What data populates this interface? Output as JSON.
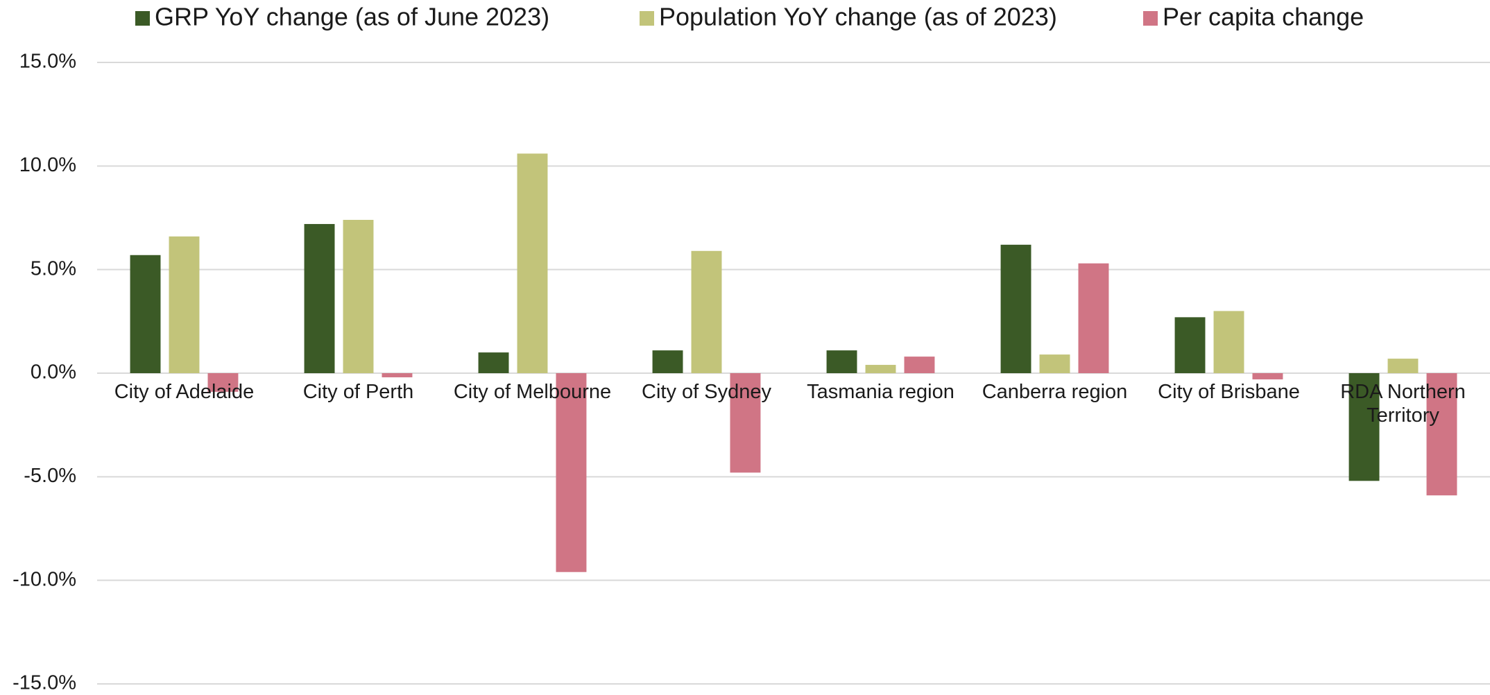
{
  "chart_data": {
    "type": "bar",
    "categories": [
      "City of Adelaide",
      "City of Perth",
      "City of Melbourne",
      "City of Sydney",
      "Tasmania region",
      "Canberra region",
      "City of Brisbane",
      "RDA Northern Territory"
    ],
    "series": [
      {
        "name": "GRP YoY change (as of June 2023)",
        "color": "#3b5a26",
        "values": [
          5.7,
          7.2,
          1.0,
          1.1,
          1.1,
          6.2,
          2.7,
          -5.2
        ]
      },
      {
        "name": "Population YoY change (as of 2023)",
        "color": "#c2c47a",
        "values": [
          6.6,
          7.4,
          10.6,
          5.9,
          0.4,
          0.9,
          3.0,
          0.7
        ]
      },
      {
        "name": "Per capita change",
        "color": "#d07585",
        "values": [
          -0.9,
          -0.2,
          -9.6,
          -4.8,
          0.8,
          5.3,
          -0.3,
          -5.9
        ]
      }
    ],
    "ylim": [
      -15,
      15
    ],
    "yticks": [
      {
        "value": -15,
        "label": "-15.0%"
      },
      {
        "value": -10,
        "label": "-10.0%"
      },
      {
        "value": -5,
        "label": "-5.0%"
      },
      {
        "value": 0,
        "label": "0.0%"
      },
      {
        "value": 5,
        "label": "5.0%"
      },
      {
        "value": 10,
        "label": "10.0%"
      },
      {
        "value": 15,
        "label": "15.0%"
      }
    ],
    "grid": true,
    "legend": "top"
  }
}
